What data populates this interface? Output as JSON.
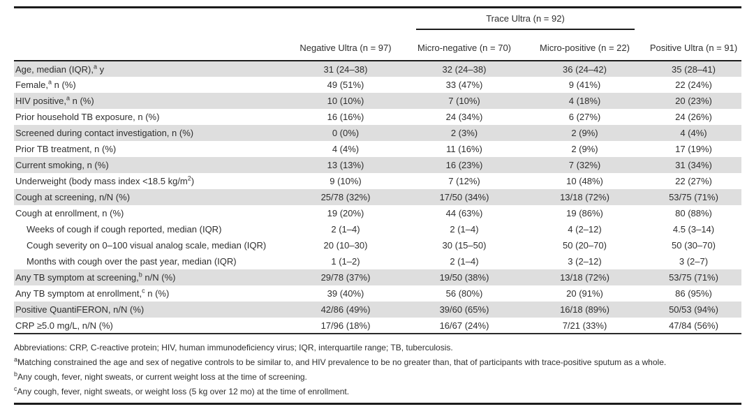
{
  "table": {
    "spanner_label": "Trace Ultra (n = 92)",
    "columns": [
      "Negative Ultra (n = 97)",
      "Micro-negative (n = 70)",
      "Micro-positive (n = 22)",
      "Positive Ultra (n = 91)"
    ],
    "rows": [
      {
        "label": "Age, median (IQR),",
        "sup": "a",
        "rest": " y",
        "shaded": true,
        "indent": false,
        "values": [
          "31 (24–38)",
          "32 (24–38)",
          "36 (24–42)",
          "35 (28–41)"
        ]
      },
      {
        "label": "Female,",
        "sup": "a",
        "rest": " n (%)",
        "shaded": false,
        "indent": false,
        "values": [
          "49 (51%)",
          "33 (47%)",
          "9 (41%)",
          "22 (24%)"
        ]
      },
      {
        "label": "HIV positive,",
        "sup": "a",
        "rest": " n (%)",
        "shaded": true,
        "indent": false,
        "values": [
          "10 (10%)",
          "7 (10%)",
          "4 (18%)",
          "20 (23%)"
        ]
      },
      {
        "label": "Prior household TB exposure, n (%)",
        "sup": "",
        "rest": "",
        "shaded": false,
        "indent": false,
        "values": [
          "16 (16%)",
          "24 (34%)",
          "6 (27%)",
          "24 (26%)"
        ]
      },
      {
        "label": "Screened during contact investigation, n (%)",
        "sup": "",
        "rest": "",
        "shaded": true,
        "indent": false,
        "values": [
          "0 (0%)",
          "2 (3%)",
          "2 (9%)",
          "4 (4%)"
        ]
      },
      {
        "label": "Prior TB treatment, n (%)",
        "sup": "",
        "rest": "",
        "shaded": false,
        "indent": false,
        "values": [
          "4 (4%)",
          "11 (16%)",
          "2 (9%)",
          "17 (19%)"
        ]
      },
      {
        "label": "Current smoking, n (%)",
        "sup": "",
        "rest": "",
        "shaded": true,
        "indent": false,
        "values": [
          "13 (13%)",
          "16 (23%)",
          "7 (32%)",
          "31 (34%)"
        ]
      },
      {
        "label": "Underweight (body mass index <18.5 kg/m",
        "sup": "2",
        "rest": ")",
        "shaded": false,
        "indent": false,
        "values": [
          "9 (10%)",
          "7 (12%)",
          "10 (48%)",
          "22 (27%)"
        ]
      },
      {
        "label": "Cough at screening, n/N (%)",
        "sup": "",
        "rest": "",
        "shaded": true,
        "indent": false,
        "values": [
          "25/78 (32%)",
          "17/50 (34%)",
          "13/18 (72%)",
          "53/75 (71%)"
        ]
      },
      {
        "label": "Cough at enrollment, n (%)",
        "sup": "",
        "rest": "",
        "shaded": false,
        "indent": false,
        "values": [
          "19 (20%)",
          "44 (63%)",
          "19 (86%)",
          "80 (88%)"
        ]
      },
      {
        "label": "Weeks of cough if cough reported, median (IQR)",
        "sup": "",
        "rest": "",
        "shaded": false,
        "indent": true,
        "values": [
          "2 (1–4)",
          "2 (1–4)",
          "4 (2–12)",
          "4.5 (3–14)"
        ]
      },
      {
        "label": "Cough severity on 0–100 visual analog scale, median (IQR)",
        "sup": "",
        "rest": "",
        "shaded": false,
        "indent": true,
        "values": [
          "20 (10–30)",
          "30 (15–50)",
          "50 (20–70)",
          "50 (30–70)"
        ]
      },
      {
        "label": "Months with cough over the past year, median (IQR)",
        "sup": "",
        "rest": "",
        "shaded": false,
        "indent": true,
        "values": [
          "1 (1–2)",
          "2 (1–4)",
          "3 (2–12)",
          "3 (2–7)"
        ]
      },
      {
        "label": "Any TB symptom at screening,",
        "sup": "b",
        "rest": " n/N (%)",
        "shaded": true,
        "indent": false,
        "values": [
          "29/78 (37%)",
          "19/50 (38%)",
          "13/18 (72%)",
          "53/75 (71%)"
        ]
      },
      {
        "label": "Any TB symptom at enrollment,",
        "sup": "c",
        "rest": " n (%)",
        "shaded": false,
        "indent": false,
        "values": [
          "39 (40%)",
          "56 (80%)",
          "20 (91%)",
          "86 (95%)"
        ]
      },
      {
        "label": "Positive QuantiFERON, n/N (%)",
        "sup": "",
        "rest": "",
        "shaded": true,
        "indent": false,
        "values": [
          "42/86 (49%)",
          "39/60 (65%)",
          "16/18 (89%)",
          "50/53 (94%)"
        ]
      },
      {
        "label": "CRP ≥5.0 mg/L, n/N (%)",
        "sup": "",
        "rest": "",
        "shaded": false,
        "indent": false,
        "values": [
          "17/96 (18%)",
          "16/67 (24%)",
          "7/21 (33%)",
          "47/84 (56%)"
        ]
      }
    ]
  },
  "footnotes": [
    {
      "sup": "",
      "text": "Abbreviations: CRP, C-reactive protein; HIV, human immunodeficiency virus; IQR, interquartile range; TB, tuberculosis."
    },
    {
      "sup": "a",
      "text": "Matching constrained the age and sex of negative controls to be similar to, and HIV prevalence to be no greater than, that of participants with trace-positive sputum as a whole."
    },
    {
      "sup": "b",
      "text": "Any cough, fever, night sweats, or current weight loss at the time of screening."
    },
    {
      "sup": "c",
      "text": "Any cough, fever, night sweats, or weight loss (5 kg over 12 mo) at the time of enrollment."
    }
  ]
}
